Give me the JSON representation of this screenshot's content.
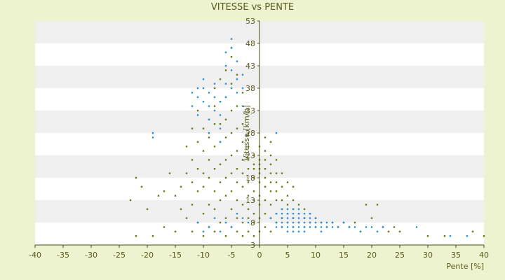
{
  "chart_data": {
    "type": "scatter",
    "title": "VITESSE vs PENTE",
    "xlabel": "Pente [%]",
    "ylabel": "Vitesse [km/h]",
    "xlim": [
      -40,
      40
    ],
    "ylim": [
      3,
      53
    ],
    "x_ticks": [
      "-40",
      "-35",
      "-30",
      "-25",
      "-20",
      "-15",
      "-10",
      "-5",
      "0",
      "5",
      "10",
      "15",
      "20",
      "25",
      "30",
      "35",
      "40"
    ],
    "y_ticks": [
      "3",
      "8",
      "13",
      "18",
      "23",
      "28",
      "33",
      "38",
      "43",
      "48",
      "53"
    ],
    "grid": "horizontal-bands",
    "colors": {
      "background": "#eef3cf",
      "band_light": "#ffffff",
      "band_dark": "#efefef",
      "axis": "#4b4b10",
      "olive_series": "#6b7a16",
      "blue_series": "#2f8fd8"
    },
    "series": [
      {
        "color": "olive",
        "points": [
          [
            -23,
            13
          ],
          [
            -22,
            5
          ],
          [
            -22,
            18
          ],
          [
            -21,
            16
          ],
          [
            -20,
            11
          ],
          [
            -19,
            5
          ],
          [
            -18,
            14
          ],
          [
            -17,
            7
          ],
          [
            -17,
            15
          ],
          [
            -16,
            19
          ],
          [
            -15,
            6
          ],
          [
            -15,
            14
          ],
          [
            -14,
            11
          ],
          [
            -14,
            16
          ],
          [
            -13,
            9
          ],
          [
            -13,
            19
          ],
          [
            -13,
            25
          ],
          [
            -12,
            6
          ],
          [
            -12,
            12
          ],
          [
            -12,
            17
          ],
          [
            -12,
            22
          ],
          [
            -12,
            29
          ],
          [
            -11,
            8
          ],
          [
            -11,
            15
          ],
          [
            -11,
            20
          ],
          [
            -11,
            26
          ],
          [
            -11,
            33
          ],
          [
            -10,
            5
          ],
          [
            -10,
            10
          ],
          [
            -10,
            16
          ],
          [
            -10,
            19
          ],
          [
            -10,
            24
          ],
          [
            -10,
            29
          ],
          [
            -9,
            7
          ],
          [
            -9,
            12
          ],
          [
            -9,
            18
          ],
          [
            -9,
            22
          ],
          [
            -9,
            27
          ],
          [
            -9,
            31
          ],
          [
            -8,
            6
          ],
          [
            -8,
            11
          ],
          [
            -8,
            15
          ],
          [
            -8,
            20
          ],
          [
            -8,
            25
          ],
          [
            -8,
            30
          ],
          [
            -8,
            34
          ],
          [
            -8,
            38
          ],
          [
            -7,
            8
          ],
          [
            -7,
            13
          ],
          [
            -7,
            17
          ],
          [
            -7,
            21
          ],
          [
            -7,
            26
          ],
          [
            -7,
            30
          ],
          [
            -7,
            35
          ],
          [
            -7,
            40
          ],
          [
            -6,
            5
          ],
          [
            -6,
            9
          ],
          [
            -6,
            14
          ],
          [
            -6,
            18
          ],
          [
            -6,
            22
          ],
          [
            -6,
            27
          ],
          [
            -6,
            31
          ],
          [
            -6,
            36
          ],
          [
            -6,
            42
          ],
          [
            -5,
            7
          ],
          [
            -5,
            11
          ],
          [
            -5,
            15
          ],
          [
            -5,
            19
          ],
          [
            -5,
            23
          ],
          [
            -5,
            28
          ],
          [
            -5,
            33
          ],
          [
            -5,
            39
          ],
          [
            -5,
            45
          ],
          [
            -5,
            47
          ],
          [
            -4,
            6
          ],
          [
            -4,
            9
          ],
          [
            -4,
            13
          ],
          [
            -4,
            17
          ],
          [
            -4,
            20
          ],
          [
            -4,
            24
          ],
          [
            -4,
            29
          ],
          [
            -4,
            34
          ],
          [
            -4,
            41
          ],
          [
            -3,
            5
          ],
          [
            -3,
            8
          ],
          [
            -3,
            12
          ],
          [
            -3,
            16
          ],
          [
            -3,
            19
          ],
          [
            -3,
            22
          ],
          [
            -3,
            26
          ],
          [
            -3,
            30
          ],
          [
            -3,
            37
          ],
          [
            -2,
            6
          ],
          [
            -2,
            9
          ],
          [
            -2,
            11
          ],
          [
            -2,
            14
          ],
          [
            -2,
            17
          ],
          [
            -2,
            20
          ],
          [
            -2,
            22
          ],
          [
            -2,
            25
          ],
          [
            -2,
            28
          ],
          [
            -1,
            5
          ],
          [
            -1,
            8
          ],
          [
            -1,
            10
          ],
          [
            -1,
            13
          ],
          [
            -1,
            15
          ],
          [
            -1,
            18
          ],
          [
            -1,
            20
          ],
          [
            -1,
            21
          ],
          [
            -1,
            23
          ],
          [
            0,
            6
          ],
          [
            0,
            9
          ],
          [
            0,
            12
          ],
          [
            0,
            14
          ],
          [
            0,
            17
          ],
          [
            0,
            19
          ],
          [
            0,
            20
          ],
          [
            0,
            21
          ],
          [
            0,
            22
          ],
          [
            0,
            25
          ],
          [
            1,
            7
          ],
          [
            1,
            10
          ],
          [
            1,
            13
          ],
          [
            1,
            16
          ],
          [
            1,
            18
          ],
          [
            1,
            20
          ],
          [
            1,
            22
          ],
          [
            1,
            24
          ],
          [
            1,
            27
          ],
          [
            2,
            6
          ],
          [
            2,
            9
          ],
          [
            2,
            12
          ],
          [
            2,
            15
          ],
          [
            2,
            17
          ],
          [
            2,
            19
          ],
          [
            2,
            21
          ],
          [
            2,
            23
          ],
          [
            2,
            26
          ],
          [
            3,
            8
          ],
          [
            3,
            10
          ],
          [
            3,
            13
          ],
          [
            3,
            15
          ],
          [
            3,
            17
          ],
          [
            3,
            19
          ],
          [
            3,
            22
          ],
          [
            4,
            7
          ],
          [
            4,
            9
          ],
          [
            4,
            11
          ],
          [
            4,
            13
          ],
          [
            4,
            16
          ],
          [
            4,
            19
          ],
          [
            5,
            8
          ],
          [
            5,
            10
          ],
          [
            5,
            12
          ],
          [
            5,
            14
          ],
          [
            5,
            17
          ],
          [
            6,
            7
          ],
          [
            6,
            9
          ],
          [
            6,
            11
          ],
          [
            6,
            13
          ],
          [
            6,
            16
          ],
          [
            7,
            8
          ],
          [
            7,
            10
          ],
          [
            7,
            12
          ],
          [
            8,
            7
          ],
          [
            8,
            9
          ],
          [
            8,
            11
          ],
          [
            9,
            8
          ],
          [
            9,
            10
          ],
          [
            10,
            7
          ],
          [
            10,
            9
          ],
          [
            11,
            8
          ],
          [
            12,
            7
          ],
          [
            13,
            8
          ],
          [
            14,
            7
          ],
          [
            15,
            8
          ],
          [
            16,
            7
          ],
          [
            17,
            8
          ],
          [
            18,
            6
          ],
          [
            19,
            12
          ],
          [
            20,
            9
          ],
          [
            21,
            12
          ],
          [
            22,
            7
          ],
          [
            23,
            6
          ],
          [
            24,
            7
          ],
          [
            25,
            6
          ],
          [
            30,
            5
          ],
          [
            33,
            5
          ],
          [
            38,
            6
          ],
          [
            40,
            5
          ]
        ]
      },
      {
        "color": "blue",
        "points": [
          [
            -19,
            28
          ],
          [
            -19,
            27
          ],
          [
            -12,
            34
          ],
          [
            -12,
            37
          ],
          [
            -11,
            38
          ],
          [
            -11,
            36
          ],
          [
            -11,
            32
          ],
          [
            -10,
            35
          ],
          [
            -10,
            38
          ],
          [
            -10,
            40
          ],
          [
            -9,
            37
          ],
          [
            -9,
            34
          ],
          [
            -9,
            31
          ],
          [
            -9,
            28
          ],
          [
            -8,
            33
          ],
          [
            -8,
            36
          ],
          [
            -8,
            39
          ],
          [
            -7,
            35
          ],
          [
            -7,
            32
          ],
          [
            -7,
            29
          ],
          [
            -7,
            26
          ],
          [
            -6,
            36
          ],
          [
            -6,
            39
          ],
          [
            -6,
            43
          ],
          [
            -6,
            46
          ],
          [
            -5,
            38
          ],
          [
            -5,
            42
          ],
          [
            -5,
            47
          ],
          [
            -5,
            49
          ],
          [
            -4,
            40
          ],
          [
            -4,
            44
          ],
          [
            -4,
            37
          ],
          [
            -3,
            38
          ],
          [
            -3,
            41
          ],
          [
            -3,
            34
          ],
          [
            -11,
            8
          ],
          [
            -10,
            6
          ],
          [
            -9,
            7
          ],
          [
            -8,
            9
          ],
          [
            -7,
            6
          ],
          [
            -6,
            8
          ],
          [
            -5,
            7
          ],
          [
            -4,
            10
          ],
          [
            -3,
            9
          ],
          [
            -2,
            8
          ],
          [
            2,
            9
          ],
          [
            3,
            8
          ],
          [
            3,
            10
          ],
          [
            3,
            7
          ],
          [
            3,
            28
          ],
          [
            4,
            9
          ],
          [
            4,
            8
          ],
          [
            4,
            7
          ],
          [
            4,
            10
          ],
          [
            4,
            11
          ],
          [
            5,
            8
          ],
          [
            5,
            9
          ],
          [
            5,
            7
          ],
          [
            5,
            10
          ],
          [
            5,
            11
          ],
          [
            5,
            6
          ],
          [
            6,
            9
          ],
          [
            6,
            8
          ],
          [
            6,
            7
          ],
          [
            6,
            10
          ],
          [
            6,
            11
          ],
          [
            6,
            6
          ],
          [
            7,
            9
          ],
          [
            7,
            8
          ],
          [
            7,
            7
          ],
          [
            7,
            10
          ],
          [
            7,
            11
          ],
          [
            7,
            6
          ],
          [
            8,
            9
          ],
          [
            8,
            8
          ],
          [
            8,
            7
          ],
          [
            8,
            10
          ],
          [
            8,
            6
          ],
          [
            9,
            8
          ],
          [
            9,
            7
          ],
          [
            9,
            9
          ],
          [
            9,
            10
          ],
          [
            10,
            8
          ],
          [
            10,
            7
          ],
          [
            10,
            9
          ],
          [
            11,
            8
          ],
          [
            11,
            7
          ],
          [
            11,
            6
          ],
          [
            12,
            7
          ],
          [
            12,
            8
          ],
          [
            13,
            7
          ],
          [
            13,
            8
          ],
          [
            14,
            7
          ],
          [
            15,
            8
          ],
          [
            16,
            7
          ],
          [
            17,
            7
          ],
          [
            18,
            6
          ],
          [
            19,
            7
          ],
          [
            20,
            7
          ],
          [
            21,
            6
          ],
          [
            22,
            7
          ],
          [
            28,
            7
          ],
          [
            34,
            5
          ],
          [
            37,
            5
          ]
        ]
      }
    ]
  }
}
